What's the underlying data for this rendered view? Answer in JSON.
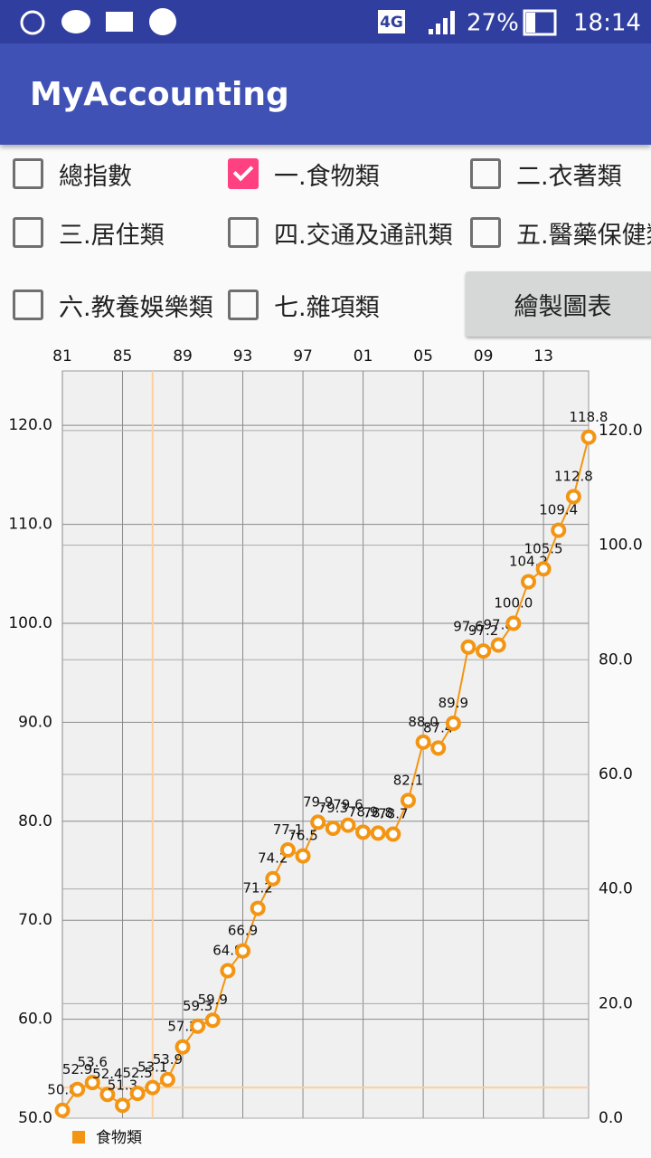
{
  "status_bar": {
    "network": "4G",
    "battery": "27%",
    "time": "18:14"
  },
  "app_bar": {
    "title": "MyAccounting"
  },
  "checkboxes": [
    {
      "label": "總指數",
      "checked": false
    },
    {
      "label": "一.食物類",
      "checked": true
    },
    {
      "label": "二.衣著類",
      "checked": false
    },
    {
      "label": "三.居住類",
      "checked": false
    },
    {
      "label": "四.交通及通訊類",
      "checked": false
    },
    {
      "label": "五.醫藥保健類",
      "checked": false
    },
    {
      "label": "六.教養娛樂類",
      "checked": false
    },
    {
      "label": "七.雜項類",
      "checked": false
    }
  ],
  "button": "繪製圖表",
  "chart_data": {
    "type": "line",
    "x": [
      81,
      82,
      83,
      84,
      85,
      86,
      87,
      88,
      89,
      90,
      91,
      92,
      93,
      94,
      95,
      96,
      97,
      98,
      99,
      100,
      101,
      102,
      103,
      104,
      105,
      106,
      107,
      108,
      109,
      110,
      111,
      112,
      113,
      114,
      115,
      116
    ],
    "series": [
      {
        "name": "食物類",
        "color": "#f39512",
        "values": [
          50.8,
          52.9,
          53.6,
          52.4,
          51.3,
          52.5,
          53.1,
          53.9,
          57.2,
          59.3,
          59.9,
          64.9,
          66.9,
          71.2,
          74.2,
          77.1,
          76.5,
          79.9,
          79.3,
          79.6,
          78.9,
          78.8,
          78.7,
          82.1,
          88.0,
          87.4,
          89.9,
          97.6,
          97.2,
          97.8,
          100.0,
          104.2,
          105.5,
          109.4,
          112.8,
          118.8
        ],
        "value_labels": [
          "50.8",
          "52.9",
          "53.6",
          "52.4",
          "51.3",
          "52.5",
          "53.1",
          "53.9",
          "57.2",
          "59.3",
          "59.9",
          "64.9",
          "66.9",
          "71.2",
          "74.2",
          "77.1",
          "76.5",
          "79.9",
          "79.3",
          "79.6",
          "78.9",
          "78.8",
          "78.7",
          "82.1",
          "88.0",
          "87.4",
          "89.9",
          "97.6",
          "97.2",
          "97.8",
          "100.0",
          "104.2",
          "105.5",
          "109.4",
          "112.8",
          "118.8"
        ]
      }
    ],
    "xlim": [
      81,
      116
    ],
    "xticks": [
      81,
      85,
      89,
      93,
      97,
      {
        "value": 101,
        "label": "01"
      },
      {
        "value": 105,
        "label": "05"
      },
      {
        "value": 109,
        "label": "09"
      },
      {
        "value": 113,
        "label": "13"
      }
    ],
    "ylim": [
      50,
      125.5
    ],
    "yticks": [
      {
        "value": 50,
        "label": "50.0"
      },
      {
        "value": 60,
        "label": "60.0"
      },
      {
        "value": 70,
        "label": "70.0"
      },
      {
        "value": 80,
        "label": "80.0"
      },
      {
        "value": 90,
        "label": "90.0"
      },
      {
        "value": 100,
        "label": "100.0"
      },
      {
        "value": 110,
        "label": "110.0"
      },
      {
        "value": 120,
        "label": "120.0"
      }
    ],
    "y2lim": [
      0,
      130.4
    ],
    "y2ticks": [
      {
        "value": 0,
        "label": "0.0"
      },
      {
        "value": 20,
        "label": "20.0"
      },
      {
        "value": 40,
        "label": "40.0"
      },
      {
        "value": 60,
        "label": "60.0"
      },
      {
        "value": 80,
        "label": "80.0"
      },
      {
        "value": 100,
        "label": "100.0"
      },
      {
        "value": 120,
        "label": "120.0"
      }
    ],
    "grid": true,
    "highlight_index": 6,
    "legend": "bottom-left"
  }
}
